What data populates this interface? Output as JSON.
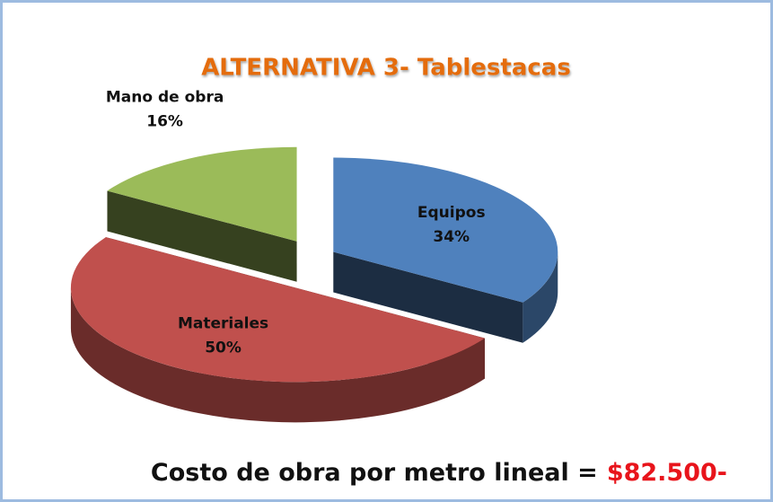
{
  "chart_data": {
    "type": "pie3d",
    "title": "ALTERNATIVA 3- Tablestacas",
    "categories": [
      "Equipos",
      "Materiales",
      "Mano de obra"
    ],
    "values": [
      34,
      50,
      16
    ],
    "value_labels": [
      "34%",
      "50%",
      "16%"
    ],
    "colors": [
      "#4f81bd",
      "#c0504d",
      "#9bbb59"
    ],
    "annotation": {
      "text": "Costo de obra por metro lineal =",
      "highlight": "$82.500-"
    }
  }
}
